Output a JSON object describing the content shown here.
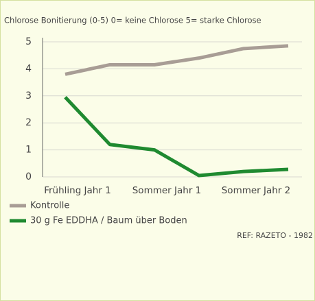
{
  "chart_data": {
    "type": "line",
    "title": "Chlorose Bonitierung (0-5) 0= keine Chlorose 5= starke Chlorose",
    "categories": [
      "Frühling Jahr 1",
      null,
      "Sommer Jahr 1",
      null,
      "Sommer Jahr 2",
      null
    ],
    "series": [
      {
        "name": "Kontrolle",
        "color": "#a89d95",
        "values": [
          3.8,
          4.15,
          4.15,
          4.4,
          4.75,
          4.85
        ]
      },
      {
        "name": "30 g Fe EDDHA / Baum über Boden",
        "color": "#1f8a30",
        "values": [
          2.95,
          1.2,
          1.0,
          0.05,
          0.2,
          0.28
        ]
      }
    ],
    "ylim": [
      0,
      5
    ],
    "yticks": [
      0,
      1,
      2,
      3,
      4,
      5
    ],
    "grid": true,
    "legend": "bottom-left",
    "annotation": "REF: RAZETO - 1982"
  }
}
